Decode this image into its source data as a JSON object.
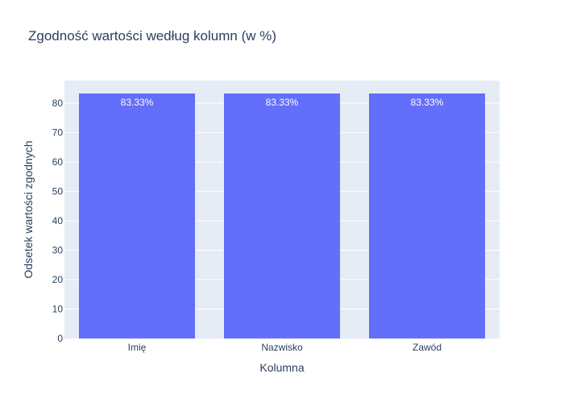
{
  "chart_data": {
    "type": "bar",
    "title": "Zgodność wartości według kolumn (w %)",
    "xlabel": "Kolumna",
    "ylabel": "Odsetek wartości zgodnych",
    "categories": [
      "Imię",
      "Nazwisko",
      "Zawód"
    ],
    "values": [
      83.33,
      83.33,
      83.33
    ],
    "data_labels": [
      "83.33%",
      "83.33%",
      "83.33%"
    ],
    "ylim": [
      0,
      87.72
    ],
    "yticks": [
      0,
      10,
      20,
      30,
      40,
      50,
      60,
      70,
      80
    ],
    "grid": true,
    "legend": "none",
    "colors": {
      "bar": "#636efa",
      "plot_background": "#e5ecf6",
      "grid": "#ffffff",
      "text": "#2a3f5f",
      "data_label": "#ffffff"
    }
  }
}
